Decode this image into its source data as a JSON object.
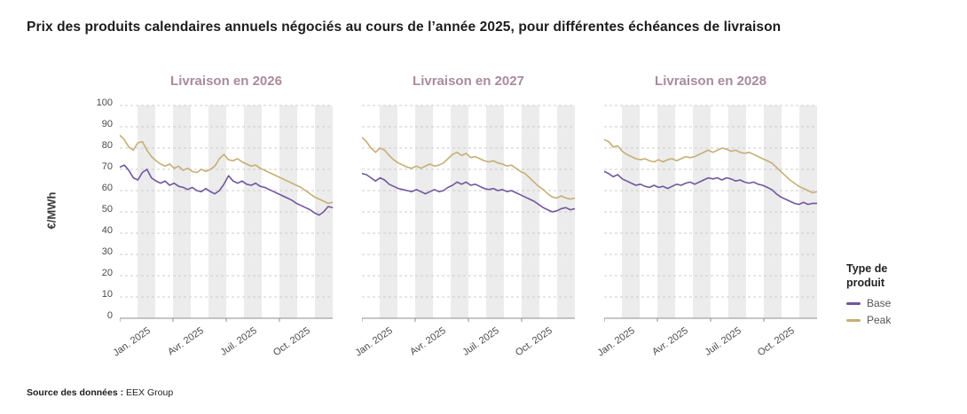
{
  "page": {
    "title": "Prix des produits calendaires annuels négociés au cours de l’année 2025, pour différentes échéances de livraison",
    "source": {
      "label": "Source des données :",
      "value": "EEX Group"
    }
  },
  "y_axis": {
    "label": "€/MWh",
    "ticks": [
      0,
      10,
      20,
      30,
      40,
      50,
      60,
      70,
      80,
      90,
      100
    ]
  },
  "legend": {
    "title": "Type de produit",
    "items": [
      {
        "label": "Base",
        "color": "#71569e"
      },
      {
        "label": "Peak",
        "color": "#c6ae75"
      }
    ]
  },
  "colors": {
    "panel_title": "#a98a9e",
    "band": "#ececec",
    "grid": "#cccccc",
    "axis": "#8c8c8c"
  },
  "chart_data": [
    {
      "type": "line",
      "title": "Livraison en 2026",
      "x_ticks": [
        "Jan. 2025",
        "Avr. 2025",
        "Juil. 2025",
        "Oct. 2025"
      ],
      "ylim": [
        0,
        100
      ],
      "grid": true,
      "legend_position": "right",
      "series": [
        {
          "name": "Base",
          "color": "#71569e",
          "values": [
            71,
            72,
            69.5,
            66,
            65,
            68.5,
            70,
            66,
            64.5,
            63.5,
            64.5,
            62.5,
            63.5,
            62,
            61.5,
            60.5,
            61.5,
            60,
            59.5,
            61,
            59.5,
            58.5,
            60,
            63,
            67,
            64.5,
            63.5,
            64.5,
            63,
            62.5,
            63.5,
            62,
            61.5,
            60.5,
            59.5,
            58.5,
            57.5,
            56.5,
            55.5,
            54,
            53,
            52,
            51,
            49.5,
            48.5,
            50,
            52.5,
            52
          ]
        },
        {
          "name": "Peak",
          "color": "#c6ae75",
          "values": [
            86,
            84,
            80.5,
            79,
            82.5,
            83,
            79,
            76,
            74,
            72.5,
            71.5,
            72.5,
            70.5,
            71.5,
            69.5,
            70.5,
            69,
            68.5,
            70,
            69,
            70,
            71.5,
            75,
            77,
            74.5,
            74,
            75,
            73.5,
            72.5,
            71.5,
            72,
            70.5,
            69.5,
            68.5,
            67.5,
            66.5,
            65.5,
            64.5,
            63.5,
            62.5,
            61.5,
            60,
            58.5,
            57,
            56,
            55,
            54,
            54.5
          ]
        }
      ]
    },
    {
      "type": "line",
      "title": "Livraison en 2027",
      "x_ticks": [
        "Jan. 2025",
        "Avr. 2025",
        "Juil. 2025",
        "Oct. 2025"
      ],
      "ylim": [
        0,
        100
      ],
      "grid": true,
      "legend_position": "right",
      "series": [
        {
          "name": "Base",
          "color": "#71569e",
          "values": [
            68,
            67.5,
            66,
            64.5,
            66,
            65,
            63,
            62,
            61,
            60.5,
            60,
            59.5,
            60.5,
            59.5,
            58.5,
            59.5,
            60.5,
            59.5,
            60,
            61.5,
            62.5,
            64,
            63,
            64,
            62.5,
            63,
            62,
            61,
            60.5,
            61,
            60,
            60.5,
            59.5,
            60,
            59,
            58,
            57,
            56,
            55,
            53.5,
            52,
            51,
            50,
            50.5,
            51.5,
            52,
            51,
            51.5
          ]
        },
        {
          "name": "Peak",
          "color": "#c6ae75",
          "values": [
            85,
            83,
            80,
            78,
            80,
            79,
            76.5,
            74.5,
            73,
            72,
            71,
            70.5,
            71.5,
            70.5,
            71.5,
            72.5,
            71.5,
            72,
            73,
            75,
            77,
            78,
            76.5,
            77.5,
            75.5,
            76,
            75,
            74,
            73.5,
            74,
            73,
            72.5,
            71.5,
            72,
            70.5,
            69,
            68,
            66,
            64,
            62,
            60.5,
            58.5,
            57,
            56.5,
            57.5,
            56.5,
            56,
            56.5
          ]
        }
      ]
    },
    {
      "type": "line",
      "title": "Livraison en 2028",
      "x_ticks": [
        "Jan. 2025",
        "Avr. 2025",
        "Juil. 2025",
        "Oct. 2025"
      ],
      "ylim": [
        0,
        100
      ],
      "grid": true,
      "legend_position": "right",
      "series": [
        {
          "name": "Base",
          "color": "#71569e",
          "values": [
            69,
            68,
            66.5,
            67.5,
            65.5,
            64.5,
            63.5,
            62.5,
            63,
            62,
            61.5,
            62.5,
            61.5,
            62,
            61,
            62,
            63,
            62.5,
            63.5,
            64,
            63,
            64,
            65,
            66,
            65.5,
            66,
            65,
            66,
            65.5,
            64.5,
            65,
            64,
            63.5,
            64,
            63,
            62.5,
            61.5,
            60.5,
            58.5,
            57,
            56,
            55,
            54,
            53.5,
            54.5,
            53.5,
            54,
            54
          ]
        },
        {
          "name": "Peak",
          "color": "#c6ae75",
          "values": [
            84,
            83,
            80.5,
            81,
            78.5,
            77,
            76,
            75,
            74.5,
            75,
            74,
            73.5,
            74.5,
            73.5,
            74.5,
            75,
            74,
            75,
            76,
            75.5,
            76,
            77,
            78,
            79,
            78,
            79,
            80,
            79.5,
            78.5,
            79,
            78,
            77.5,
            78,
            77,
            76,
            75,
            74,
            73,
            71,
            69,
            67,
            65,
            63.5,
            62,
            61,
            60,
            59,
            59.5
          ]
        }
      ]
    }
  ]
}
